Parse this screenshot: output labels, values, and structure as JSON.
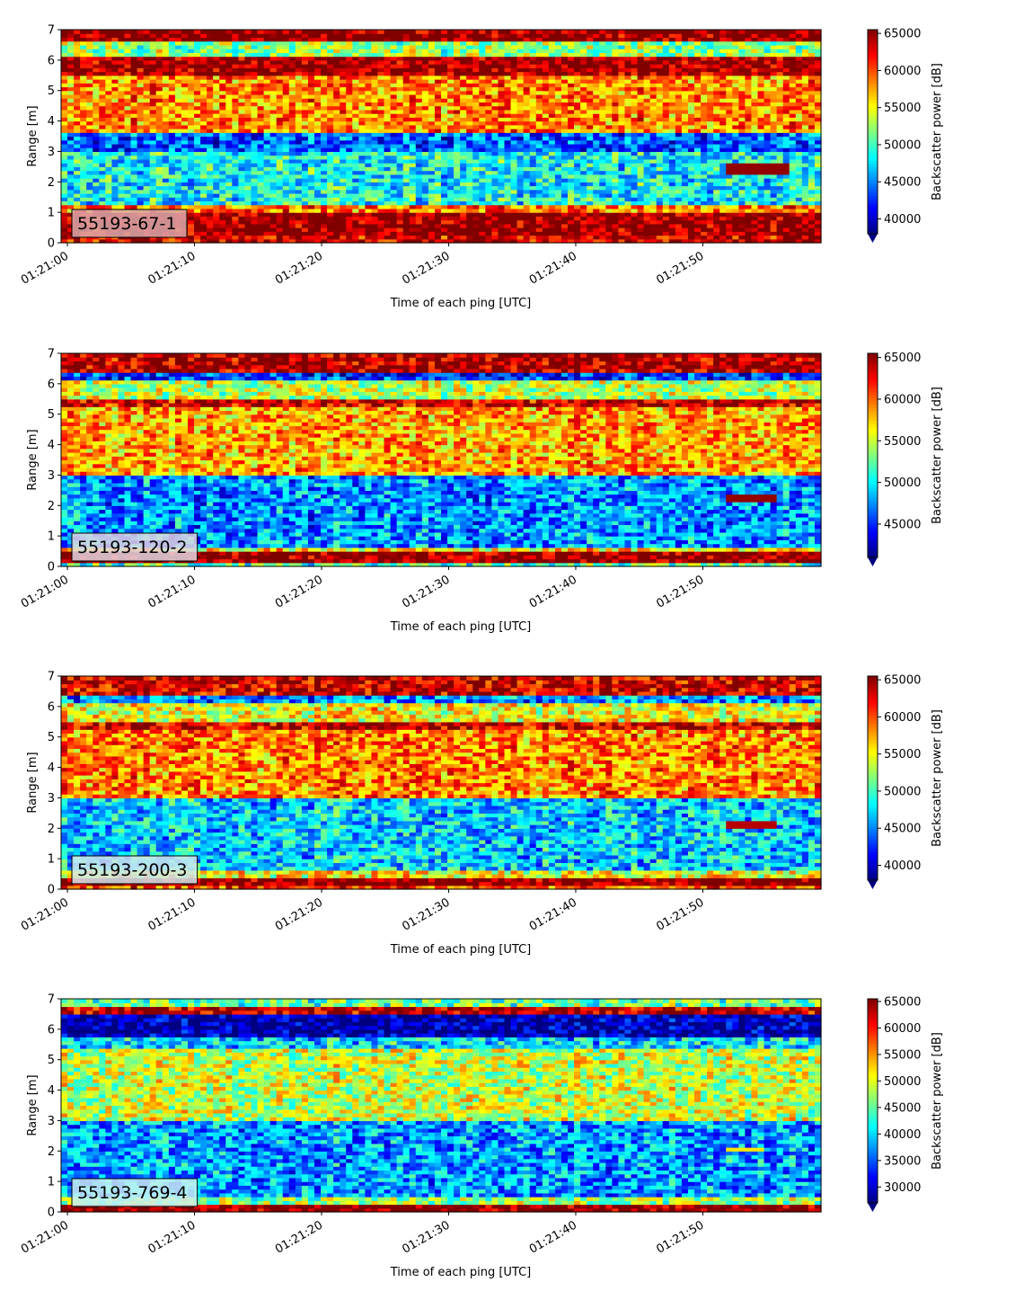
{
  "chart_data": [
    {
      "type": "heatmap",
      "label": "55193-67-1",
      "xlabel": "Time of each ping [UTC]",
      "ylabel": "Range [m]",
      "colorbar_label": "Backscatter power [dB]",
      "colormap": "jet",
      "xlim": [
        "01:20:59.5",
        "01:21:59.3"
      ],
      "ylim": [
        0,
        7
      ],
      "xticks": [
        "01:21:00",
        "01:21:10",
        "01:21:20",
        "01:21:30",
        "01:21:40",
        "01:21:50"
      ],
      "yticks": [
        0,
        1,
        2,
        3,
        4,
        5,
        6,
        7
      ],
      "clim": [
        38000,
        65500
      ],
      "cbar_ticks": [
        40000,
        45000,
        50000,
        55000,
        60000,
        65000
      ],
      "label_box_color": "#d9a8ab",
      "bands": [
        {
          "from": 0.0,
          "to": 0.25,
          "value": 63500
        },
        {
          "from": 0.25,
          "to": 1.0,
          "value": 65500
        },
        {
          "from": 1.0,
          "to": 1.2,
          "value": 59000
        },
        {
          "from": 1.2,
          "to": 3.0,
          "value": 48500
        },
        {
          "from": 3.0,
          "to": 3.6,
          "value": 44000
        },
        {
          "from": 3.6,
          "to": 5.5,
          "value": 58500
        },
        {
          "from": 5.5,
          "to": 6.1,
          "value": 65000
        },
        {
          "from": 6.1,
          "to": 6.6,
          "value": 52500
        },
        {
          "from": 6.6,
          "to": 7.0,
          "value": 65500
        }
      ],
      "feature": {
        "t_start": "01:21:52",
        "t_end": "01:21:57",
        "range_from": 2.2,
        "range_to": 2.6,
        "value": 65000
      }
    },
    {
      "type": "heatmap",
      "label": "55193-120-2",
      "xlabel": "Time of each ping [UTC]",
      "ylabel": "Range [m]",
      "colorbar_label": "Backscatter power [dB]",
      "colormap": "jet",
      "xlim": [
        "01:20:59.5",
        "01:21:59.3"
      ],
      "ylim": [
        0,
        7
      ],
      "xticks": [
        "01:21:00",
        "01:21:10",
        "01:21:20",
        "01:21:30",
        "01:21:40",
        "01:21:50"
      ],
      "yticks": [
        0,
        1,
        2,
        3,
        4,
        5,
        6,
        7
      ],
      "clim": [
        41000,
        65500
      ],
      "cbar_ticks": [
        45000,
        50000,
        55000,
        60000,
        65000
      ],
      "label_box_color": "#e2d6e0",
      "bands": [
        {
          "from": 0.0,
          "to": 0.1,
          "value": 52000
        },
        {
          "from": 0.1,
          "to": 0.45,
          "value": 65500
        },
        {
          "from": 0.45,
          "to": 0.65,
          "value": 57000
        },
        {
          "from": 0.65,
          "to": 3.0,
          "value": 47500
        },
        {
          "from": 3.0,
          "to": 5.2,
          "value": 58500
        },
        {
          "from": 5.2,
          "to": 5.5,
          "value": 63500
        },
        {
          "from": 5.5,
          "to": 6.1,
          "value": 55000
        },
        {
          "from": 6.1,
          "to": 6.4,
          "value": 45000
        },
        {
          "from": 6.4,
          "to": 7.0,
          "value": 64500
        }
      ],
      "feature": {
        "t_start": "01:21:52",
        "t_end": "01:21:56",
        "range_from": 2.1,
        "range_to": 2.35,
        "value": 65000
      }
    },
    {
      "type": "heatmap",
      "label": "55193-200-3",
      "xlabel": "Time of each ping [UTC]",
      "ylabel": "Range [m]",
      "colorbar_label": "Backscatter power [dB]",
      "colormap": "jet",
      "xlim": [
        "01:20:59.5",
        "01:21:59.3"
      ],
      "ylim": [
        0,
        7
      ],
      "xticks": [
        "01:21:00",
        "01:21:10",
        "01:21:20",
        "01:21:30",
        "01:21:40",
        "01:21:50"
      ],
      "yticks": [
        0,
        1,
        2,
        3,
        4,
        5,
        6,
        7
      ],
      "clim": [
        38000,
        65500
      ],
      "cbar_ticks": [
        40000,
        45000,
        50000,
        55000,
        60000,
        65000
      ],
      "label_box_color": "#cfe6ec",
      "bands": [
        {
          "from": 0.0,
          "to": 0.15,
          "value": 60000
        },
        {
          "from": 0.15,
          "to": 0.35,
          "value": 65500
        },
        {
          "from": 0.35,
          "to": 0.6,
          "value": 55000
        },
        {
          "from": 0.6,
          "to": 3.0,
          "value": 47000
        },
        {
          "from": 3.0,
          "to": 5.2,
          "value": 58500
        },
        {
          "from": 5.2,
          "to": 5.5,
          "value": 63500
        },
        {
          "from": 5.5,
          "to": 6.1,
          "value": 55000
        },
        {
          "from": 6.1,
          "to": 6.4,
          "value": 45000
        },
        {
          "from": 6.4,
          "to": 7.0,
          "value": 63500
        }
      ],
      "feature": {
        "t_start": "01:21:52",
        "t_end": "01:21:56",
        "range_from": 2.05,
        "range_to": 2.25,
        "value": 64000
      }
    },
    {
      "type": "heatmap",
      "label": "55193-769-4",
      "xlabel": "Time of each ping [UTC]",
      "ylabel": "Range [m]",
      "colorbar_label": "Backscatter power [dB]",
      "colormap": "jet",
      "xlim": [
        "01:20:59.5",
        "01:21:59.3"
      ],
      "ylim": [
        0,
        7
      ],
      "xticks": [
        "01:21:00",
        "01:21:10",
        "01:21:20",
        "01:21:30",
        "01:21:40",
        "01:21:50"
      ],
      "yticks": [
        0,
        1,
        2,
        3,
        4,
        5,
        6,
        7
      ],
      "clim": [
        27000,
        65500
      ],
      "cbar_ticks": [
        30000,
        35000,
        40000,
        45000,
        50000,
        55000,
        60000,
        65000
      ],
      "label_box_color": "#c9eef2",
      "bands": [
        {
          "from": 0.0,
          "to": 0.05,
          "value": 55000
        },
        {
          "from": 0.05,
          "to": 0.25,
          "value": 65500
        },
        {
          "from": 0.25,
          "to": 0.5,
          "value": 47000
        },
        {
          "from": 0.5,
          "to": 3.0,
          "value": 37500
        },
        {
          "from": 3.0,
          "to": 5.4,
          "value": 49000
        },
        {
          "from": 5.4,
          "to": 5.8,
          "value": 40000
        },
        {
          "from": 5.8,
          "to": 6.5,
          "value": 28000
        },
        {
          "from": 6.5,
          "to": 6.75,
          "value": 63000
        },
        {
          "from": 6.75,
          "to": 7.0,
          "value": 45000
        }
      ],
      "feature": {
        "t_start": "01:21:52",
        "t_end": "01:21:55",
        "range_from": 2.0,
        "range_to": 2.15,
        "value": 52000
      }
    }
  ]
}
